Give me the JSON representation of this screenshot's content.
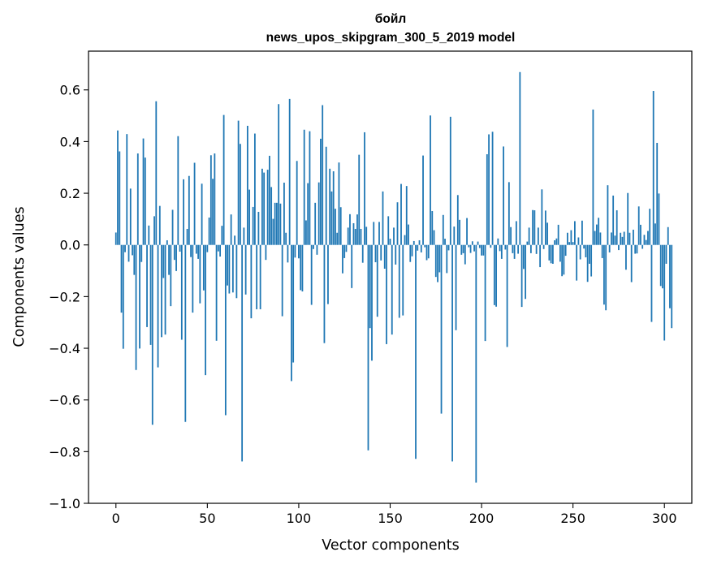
{
  "chart_data": {
    "type": "bar",
    "title": "бойл",
    "subtitle": "news_upos_skipgram_300_5_2019 model",
    "xlabel": "Vector components",
    "ylabel": "Components values",
    "xlim": [
      -15,
      315
    ],
    "ylim": [
      -1.0,
      0.75
    ],
    "xticks": [
      0,
      50,
      100,
      150,
      200,
      250,
      300
    ],
    "yticks": [
      0.6,
      0.4,
      0.2,
      0.0,
      -0.2,
      -0.4,
      -0.6,
      -0.8,
      -1.0
    ],
    "ytick_labels": [
      "0.6",
      "0.4",
      "0.2",
      "0.0",
      "−0.2",
      "−0.4",
      "−0.6",
      "−0.8",
      "−1.0"
    ],
    "grid": false,
    "bar_color": "#1f77b4",
    "values": [
      0.048,
      0.443,
      0.362,
      -0.262,
      -0.402,
      -0.028,
      0.429,
      -0.065,
      0.218,
      -0.04,
      -0.116,
      -0.484,
      0.354,
      -0.401,
      -0.066,
      0.412,
      0.338,
      -0.318,
      0.075,
      -0.387,
      -0.696,
      0.111,
      0.556,
      -0.474,
      0.151,
      -0.357,
      -0.128,
      -0.347,
      0.018,
      -0.116,
      -0.237,
      0.136,
      -0.058,
      -0.101,
      0.421,
      -0.026,
      -0.367,
      0.254,
      -0.685,
      0.062,
      0.267,
      -0.047,
      -0.262,
      0.318,
      -0.034,
      -0.054,
      -0.226,
      0.237,
      -0.176,
      -0.504,
      -0.028,
      0.106,
      0.347,
      0.256,
      0.354,
      -0.371,
      -0.025,
      -0.045,
      0.074,
      0.503,
      -0.659,
      -0.157,
      -0.188,
      0.118,
      -0.184,
      0.036,
      -0.206,
      0.481,
      0.391,
      -0.838,
      0.067,
      -0.192,
      0.461,
      0.214,
      -0.284,
      0.147,
      0.431,
      -0.249,
      0.128,
      -0.249,
      0.295,
      0.28,
      -0.058,
      0.291,
      0.345,
      0.224,
      0.101,
      0.163,
      0.163,
      0.545,
      0.16,
      -0.276,
      0.241,
      0.047,
      -0.068,
      0.565,
      -0.527,
      -0.455,
      -0.049,
      0.325,
      -0.052,
      -0.175,
      -0.18,
      0.446,
      0.095,
      0.239,
      0.44,
      -0.232,
      -0.016,
      0.163,
      -0.038,
      0.242,
      0.411,
      0.541,
      -0.38,
      0.38,
      -0.229,
      0.295,
      0.207,
      0.285,
      0.14,
      0.047,
      0.319,
      0.146,
      -0.11,
      -0.051,
      -0.027,
      0.067,
      0.119,
      -0.167,
      0.084,
      0.062,
      0.118,
      0.349,
      0.062,
      -0.069,
      0.436,
      0.07,
      -0.795,
      -0.322,
      -0.448,
      0.089,
      -0.067,
      -0.278,
      0.089,
      -0.06,
      0.207,
      -0.092,
      -0.384,
      0.111,
      0.024,
      -0.347,
      0.067,
      -0.076,
      0.165,
      -0.282,
      0.236,
      -0.273,
      0.038,
      0.228,
      0.079,
      -0.066,
      -0.044,
      0.015,
      -0.828,
      -0.022,
      0.018,
      -0.029,
      0.346,
      -0.009,
      -0.059,
      -0.052,
      0.501,
      0.131,
      0.057,
      -0.124,
      -0.144,
      -0.106,
      -0.653,
      0.116,
      0.024,
      -0.109,
      -0.021,
      0.496,
      -0.838,
      0.071,
      -0.33,
      0.193,
      0.097,
      -0.038,
      -0.032,
      -0.075,
      0.104,
      -0.009,
      -0.031,
      0.014,
      -0.025,
      -0.92,
      0.013,
      -0.012,
      -0.041,
      -0.041,
      -0.372,
      0.351,
      0.428,
      -0.011,
      0.438,
      -0.233,
      -0.239,
      0.025,
      -0.024,
      -0.054,
      0.381,
      -0.018,
      -0.395,
      0.243,
      0.069,
      -0.032,
      -0.054,
      0.092,
      -0.034,
      0.669,
      -0.24,
      -0.093,
      -0.209,
      0.013,
      0.067,
      -0.032,
      0.135,
      0.134,
      -0.035,
      0.067,
      -0.086,
      0.215,
      -0.016,
      0.133,
      0.086,
      -0.06,
      -0.071,
      -0.073,
      0.018,
      0.025,
      0.078,
      -0.065,
      -0.121,
      -0.115,
      -0.042,
      0.047,
      0.011,
      0.057,
      0.011,
      0.092,
      -0.138,
      0.029,
      -0.056,
      0.094,
      -0.014,
      -0.048,
      -0.143,
      -0.073,
      -0.122,
      0.524,
      0.054,
      0.079,
      0.105,
      0.048,
      -0.051,
      -0.231,
      -0.253,
      0.231,
      -0.029,
      0.048,
      0.191,
      0.036,
      0.134,
      -0.02,
      0.047,
      0.031,
      0.051,
      -0.096,
      0.201,
      0.047,
      -0.144,
      0.059,
      -0.034,
      -0.033,
      0.149,
      0.078,
      -0.015,
      0.039,
      0.019,
      0.054,
      0.14,
      -0.298,
      0.596,
      0.083,
      0.395,
      0.199,
      -0.159,
      -0.168,
      -0.37,
      -0.073,
      0.069,
      -0.245,
      -0.322
    ]
  }
}
